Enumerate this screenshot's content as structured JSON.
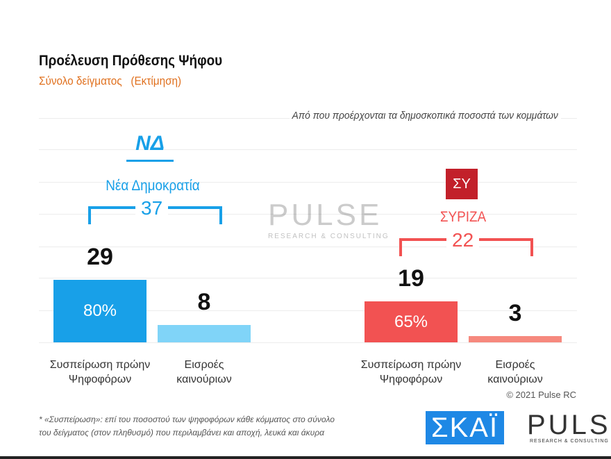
{
  "header": {
    "title": "Προέλευση Πρόθεσης Ψήφου",
    "subtitle": "Σύνολο δείγματος   (Εκτίμηση)",
    "caption": "Από που προέρχονται τα δημοσκοπικά ποσοστά των κομμάτων"
  },
  "chart_data": {
    "type": "bar",
    "categories": [
      "Συσπείρωση πρώην Ψηφοφόρων",
      "Εισροές καινούριων"
    ],
    "groups": [
      {
        "party": "Νέα Δημοκρατία",
        "logo_text": "ΝΔ",
        "total": 37,
        "values": [
          29,
          8
        ],
        "retention_pct": "80%",
        "colors": [
          "#18a0e8",
          "#80d4f8"
        ],
        "accent": "#18a0e8"
      },
      {
        "party": "ΣΥΡΙΖΑ",
        "logo_text": "ΣΥ",
        "total": 22,
        "values": [
          19,
          3
        ],
        "retention_pct": "65%",
        "colors": [
          "#f25252",
          "#f6897e"
        ],
        "accent": "#f25252"
      }
    ],
    "grid": true
  },
  "footer": {
    "note_line1": "*  «Συσπείρωση»: επί του ποσοστού των ψηφοφόρων κάθε κόμματος στο σύνολο",
    "note_line2": "του δείγματος (στον πληθυσμό) που περιλαμβάνει και αποχή, λευκά και άκυρα",
    "copyright": "© 2021 Pulse RC",
    "skai_logo": "ΣΚΑΪ",
    "pulse_logo": "PULSE",
    "pulse_sub": "RESEARCH & CONSULTING"
  }
}
